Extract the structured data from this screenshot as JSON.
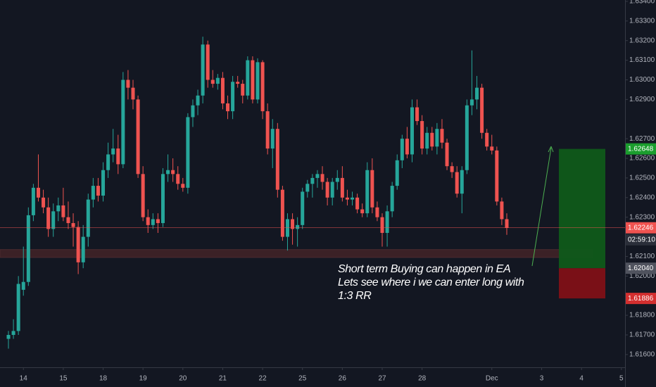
{
  "chart_data": {
    "type": "candlestick",
    "categories": [
      null,
      null,
      null,
      "14",
      null,
      null,
      null,
      null,
      null,
      null,
      null,
      "15",
      null,
      null,
      null,
      null,
      null,
      null,
      null,
      "18",
      null,
      null,
      null,
      null,
      null,
      null,
      null,
      "19",
      null,
      null,
      null,
      null,
      null,
      null,
      null,
      "20",
      null,
      null,
      null,
      null,
      null,
      null,
      null,
      "21",
      null,
      null,
      null,
      null,
      null,
      null,
      null,
      "22",
      null,
      null,
      null,
      null,
      null,
      null,
      null,
      "25",
      null,
      null,
      null,
      null,
      null,
      null,
      null,
      "26",
      null,
      null,
      null,
      null,
      null,
      null,
      null,
      "27",
      null,
      null,
      null,
      null,
      null,
      null,
      null,
      "28",
      null,
      null,
      null,
      null,
      null,
      null,
      null,
      null,
      null,
      null,
      null,
      null,
      null,
      "Dec",
      null,
      null,
      null,
      null,
      null,
      null,
      null,
      null,
      null,
      "3",
      null,
      null,
      null,
      null,
      null,
      null,
      null,
      "4",
      null,
      null,
      null,
      null,
      null,
      null,
      null,
      "5"
    ],
    "open": [
      1.6168,
      1.617,
      1.6172,
      1.6193,
      1.6197,
      1.6231,
      1.6245,
      1.624,
      1.6235,
      1.6224,
      1.6233,
      1.6236,
      1.623,
      1.6227,
      1.6225,
      1.6207,
      1.622,
      1.6239,
      1.6246,
      1.6241,
      1.6254,
      1.6262,
      1.6265,
      1.6257,
      1.63,
      1.6296,
      1.629,
      1.6252,
      1.623,
      1.6226,
      1.6229,
      1.6227,
      1.6252,
      1.6254,
      1.6252,
      1.6247,
      1.6245,
      1.6281,
      1.6287,
      1.6292,
      1.6318,
      1.63,
      1.6298,
      1.6301,
      1.6288,
      1.6284,
      1.6299,
      1.6298,
      1.6292,
      1.631,
      1.629,
      1.6309,
      1.6284,
      1.6265,
      1.6275,
      1.6244,
      1.622,
      1.6229,
      1.6224,
      1.6226,
      1.6243,
      1.6247,
      1.625,
      1.6252,
      1.6248,
      1.624,
      1.6248,
      1.625,
      1.624,
      1.6239,
      1.624,
      1.6234,
      1.6232,
      1.6254,
      1.6235,
      1.623,
      1.6222,
      1.6233,
      1.6246,
      1.6259,
      1.627,
      1.6262,
      1.6286,
      1.6279,
      1.6265,
      1.6273,
      1.6266,
      1.6275,
      1.6268,
      1.6256,
      1.6253,
      1.6242,
      1.6254,
      1.6287,
      1.629,
      1.6296,
      1.6273,
      1.6266,
      1.6264,
      1.6238,
      1.6229,
      null,
      null,
      null,
      null,
      null,
      null,
      null,
      null,
      null,
      null,
      null,
      null,
      null,
      null,
      null,
      null,
      null,
      null,
      null,
      null,
      null,
      null,
      null
    ],
    "high": [
      1.6172,
      1.6178,
      1.62,
      1.6215,
      1.6235,
      1.6247,
      1.6262,
      1.6244,
      1.624,
      1.6237,
      1.624,
      1.6245,
      1.6238,
      1.6232,
      1.6228,
      1.6226,
      1.6242,
      1.625,
      1.625,
      1.6258,
      1.6268,
      1.6275,
      1.6272,
      1.6304,
      1.6305,
      1.63,
      1.6292,
      1.6256,
      1.6234,
      1.6232,
      1.6232,
      1.6255,
      1.6262,
      1.626,
      1.6256,
      1.625,
      1.6283,
      1.629,
      1.6295,
      1.6322,
      1.632,
      1.6305,
      1.6303,
      1.6304,
      1.6292,
      1.6302,
      1.6302,
      1.63,
      1.6312,
      1.6312,
      1.6311,
      1.631,
      1.6288,
      1.628,
      1.6278,
      1.6246,
      1.6232,
      1.6232,
      1.623,
      1.6245,
      1.6249,
      1.6252,
      1.6254,
      1.6256,
      1.625,
      1.625,
      1.6254,
      1.6256,
      1.6244,
      1.6243,
      1.6242,
      1.6237,
      1.6258,
      1.626,
      1.6238,
      1.6232,
      1.6236,
      1.6248,
      1.6262,
      1.6272,
      1.6276,
      1.629,
      1.629,
      1.6282,
      1.6276,
      1.6276,
      1.6278,
      1.628,
      1.627,
      1.6258,
      1.6256,
      1.6256,
      1.629,
      1.6315,
      1.6302,
      1.6298,
      1.6275,
      1.6272,
      1.6266,
      1.624,
      1.6232,
      null,
      null,
      null,
      null,
      null,
      null,
      null,
      null,
      null,
      null,
      null,
      null,
      null,
      null,
      null,
      null,
      null,
      null,
      null,
      null,
      null,
      null,
      null
    ],
    "low": [
      1.6163,
      1.6168,
      1.617,
      1.619,
      1.6195,
      1.6228,
      1.6238,
      1.6232,
      1.622,
      1.622,
      1.6228,
      1.6228,
      1.6224,
      1.6215,
      1.6201,
      1.6204,
      1.6215,
      1.6235,
      1.6238,
      1.6238,
      1.625,
      1.6258,
      1.6252,
      1.6255,
      1.629,
      1.6285,
      1.625,
      1.6228,
      1.6222,
      1.6224,
      1.6222,
      1.6225,
      1.6248,
      1.6248,
      1.6244,
      1.6243,
      1.6242,
      1.6276,
      1.6282,
      1.6288,
      1.6296,
      1.6296,
      1.6295,
      1.6285,
      1.628,
      1.628,
      1.6296,
      1.6288,
      1.629,
      1.6288,
      1.6288,
      1.628,
      1.6262,
      1.6255,
      1.624,
      1.6218,
      1.6213,
      1.6216,
      1.6215,
      1.6224,
      1.624,
      1.624,
      1.6245,
      1.6244,
      1.6236,
      1.6236,
      1.6244,
      1.6238,
      1.6236,
      1.6236,
      1.6232,
      1.623,
      1.623,
      1.6232,
      1.6228,
      1.6215,
      1.6215,
      1.623,
      1.6244,
      1.6255,
      1.626,
      1.6258,
      1.6277,
      1.6262,
      1.6262,
      1.6264,
      1.6262,
      1.6265,
      1.6254,
      1.625,
      1.624,
      1.6232,
      1.6252,
      1.6282,
      1.6285,
      1.627,
      1.6264,
      1.6262,
      1.6236,
      1.6226,
      1.6221,
      null,
      null,
      null,
      null,
      null,
      null,
      null,
      null,
      null,
      null,
      null,
      null,
      null,
      null,
      null,
      null,
      null,
      null,
      null,
      null,
      null,
      null,
      null
    ],
    "close": [
      1.617,
      1.6172,
      1.6196,
      1.6197,
      1.6231,
      1.6245,
      1.624,
      1.6235,
      1.6224,
      1.6233,
      1.6236,
      1.623,
      1.6227,
      1.6225,
      1.6207,
      1.622,
      1.6239,
      1.6246,
      1.6241,
      1.6254,
      1.6262,
      1.6265,
      1.6257,
      1.63,
      1.6296,
      1.629,
      1.6252,
      1.623,
      1.6226,
      1.6229,
      1.6227,
      1.6252,
      1.6254,
      1.6252,
      1.6247,
      1.6245,
      1.6281,
      1.6287,
      1.6292,
      1.6318,
      1.63,
      1.6298,
      1.6301,
      1.6288,
      1.6284,
      1.6299,
      1.6298,
      1.6292,
      1.631,
      1.629,
      1.6309,
      1.6284,
      1.6265,
      1.6275,
      1.6244,
      1.622,
      1.6229,
      1.6224,
      1.6226,
      1.6243,
      1.6247,
      1.625,
      1.6252,
      1.6248,
      1.624,
      1.6248,
      1.625,
      1.624,
      1.6239,
      1.624,
      1.6234,
      1.6232,
      1.6254,
      1.6235,
      1.623,
      1.6222,
      1.6233,
      1.6246,
      1.6259,
      1.627,
      1.6262,
      1.6286,
      1.6279,
      1.6265,
      1.6273,
      1.6266,
      1.6275,
      1.6268,
      1.6256,
      1.6253,
      1.6242,
      1.6254,
      1.6287,
      1.629,
      1.6296,
      1.6273,
      1.6266,
      1.6264,
      1.6238,
      1.6229,
      1.62246,
      null,
      null,
      null,
      null,
      null,
      null,
      null,
      null,
      null,
      null,
      null,
      null,
      null,
      null,
      null,
      null,
      null,
      null,
      null,
      null,
      null,
      null,
      null
    ],
    "up_color": "#26a69a",
    "down_color": "#ef5350",
    "ylim": [
      1.61535,
      1.63407
    ],
    "yticks": [
      {
        "value": 1.634,
        "label": "1.63400"
      },
      {
        "value": 1.633,
        "label": "1.63300"
      },
      {
        "value": 1.632,
        "label": "1.63200"
      },
      {
        "value": 1.631,
        "label": "1.63100"
      },
      {
        "value": 1.63,
        "label": "1.63000"
      },
      {
        "value": 1.629,
        "label": "1.62900"
      },
      {
        "value": 1.627,
        "label": "1.62700"
      },
      {
        "value": 1.626,
        "label": "1.62600"
      },
      {
        "value": 1.625,
        "label": "1.62500"
      },
      {
        "value": 1.624,
        "label": "1.62400"
      },
      {
        "value": 1.623,
        "label": "1.62300"
      },
      {
        "value": 1.621,
        "label": "1.62100"
      },
      {
        "value": 1.62,
        "label": "1.62000"
      },
      {
        "value": 1.618,
        "label": "1.61800"
      },
      {
        "value": 1.617,
        "label": "1.61700"
      },
      {
        "value": 1.616,
        "label": "1.61600"
      }
    ],
    "grid": false,
    "last_price": {
      "value": 1.62246,
      "label": "1.62246"
    },
    "countdown": "02:59:10",
    "zone": [
      1.62095,
      1.62135
    ],
    "position": {
      "target": {
        "value": 1.62648,
        "label": "1.62648"
      },
      "entry": {
        "value": 1.6204,
        "label": "1.62040"
      },
      "stop": {
        "value": 1.61886,
        "label": "1.61886"
      }
    },
    "annotation": [
      "Short term Buying can happen in EA",
      "Lets see where i we can enter long with",
      "1:3 RR"
    ]
  }
}
